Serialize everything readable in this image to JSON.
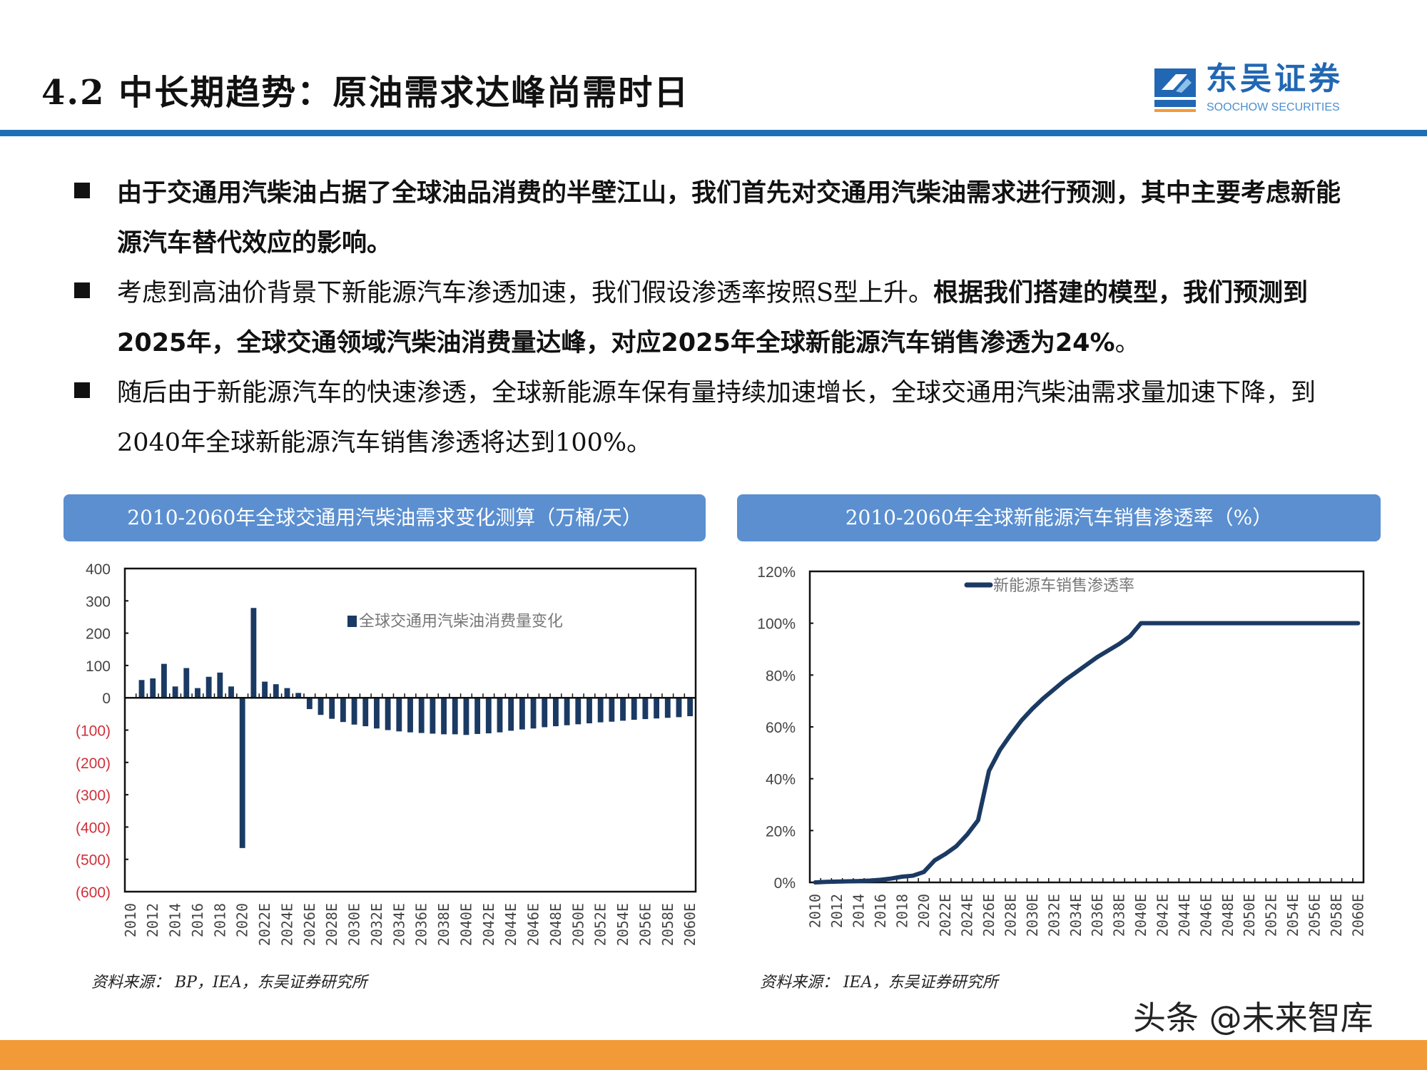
{
  "header": {
    "title": "4.2 中长期趋势：原油需求达峰尚需时日",
    "logo_cn": "东吴证券",
    "logo_en": "SOOCHOW SECURITIES",
    "logo_mark": "SCS"
  },
  "bullets": [
    {
      "segments": [
        {
          "text": "由于交通用汽柴油占据了全球油品消费的半壁江山，我们首先对交通用汽柴油需求进行预测，其中主要考虑新能源汽车替代效应的影响。",
          "bold": true
        }
      ]
    },
    {
      "segments": [
        {
          "text": "考虑到高油价背景下新能源汽车渗透加速，我们假设渗透率按照S型上升。",
          "bold": false
        },
        {
          "text": "根据我们搭建的模型，我们预测到2025年，全球交通领域汽柴油消费量达峰，对应2025年全球新能源汽车销售渗透为24%",
          "bold": true
        },
        {
          "text": "。",
          "bold": false
        }
      ]
    },
    {
      "segments": [
        {
          "text": "随后由于新能源汽车的快速渗透，全球新能源车保有量持续加速增长，全球交通用汽柴油需求量加速下降，到2040年全球新能源汽车销售渗透将达到100%。",
          "bold": false
        }
      ]
    }
  ],
  "colors": {
    "accent": "#1f6fb5",
    "header_box": "#5b8fd0",
    "series": "#1b3a63",
    "negative_tick": "#d0303a",
    "footer": "#f39a38"
  },
  "chart_data": [
    {
      "type": "bar",
      "title": "2010-2060年全球交通用汽柴油需求变化测算（万桶/天）",
      "legend": "全球交通用汽柴油消费量变化",
      "legend_position": "top-right",
      "ylim": [
        -600,
        400
      ],
      "yticks": [
        400,
        300,
        200,
        100,
        0,
        -100,
        -200,
        -300,
        -400,
        -500,
        -600
      ],
      "ytick_labels": [
        "400",
        "300",
        "200",
        "100",
        "0",
        "(100)",
        "(200)",
        "(300)",
        "(400)",
        "(500)",
        "(600)"
      ],
      "categories": [
        "2010",
        "2011",
        "2012",
        "2013",
        "2014",
        "2015",
        "2016",
        "2017",
        "2018",
        "2019",
        "2020",
        "2021E",
        "2022E",
        "2023E",
        "2024E",
        "2025E",
        "2026E",
        "2027E",
        "2028E",
        "2029E",
        "2030E",
        "2031E",
        "2032E",
        "2033E",
        "2034E",
        "2035E",
        "2036E",
        "2037E",
        "2038E",
        "2039E",
        "2040E",
        "2041E",
        "2042E",
        "2043E",
        "2044E",
        "2045E",
        "2046E",
        "2047E",
        "2048E",
        "2049E",
        "2050E",
        "2051E",
        "2052E",
        "2053E",
        "2054E",
        "2055E",
        "2056E",
        "2057E",
        "2058E",
        "2059E",
        "2060E"
      ],
      "xtick_labels": [
        "2010",
        "2012",
        "2014",
        "2016",
        "2018",
        "2020",
        "2022E",
        "2024E",
        "2026E",
        "2028E",
        "2030E",
        "2032E",
        "2034E",
        "2036E",
        "2038E",
        "2040E",
        "2042E",
        "2044E",
        "2046E",
        "2048E",
        "2050E",
        "2052E",
        "2054E",
        "2056E",
        "2058E",
        "2060E"
      ],
      "values": [
        0,
        55,
        60,
        105,
        35,
        92,
        30,
        65,
        78,
        35,
        -465,
        278,
        50,
        42,
        30,
        15,
        -35,
        -53,
        -65,
        -75,
        -83,
        -88,
        -95,
        -100,
        -104,
        -107,
        -109,
        -111,
        -113,
        -113,
        -115,
        -112,
        -110,
        -107,
        -102,
        -98,
        -95,
        -91,
        -88,
        -85,
        -82,
        -79,
        -76,
        -74,
        -71,
        -68,
        -66,
        -64,
        -62,
        -60,
        -57
      ],
      "source": "资料来源：  BP，IEA，东吴证券研究所"
    },
    {
      "type": "line",
      "title": "2010-2060年全球新能源汽车销售渗透率（%）",
      "legend": "新能源车销售渗透率",
      "legend_position": "top-center",
      "ylim": [
        0,
        120
      ],
      "yticks": [
        0,
        20,
        40,
        60,
        80,
        100,
        120
      ],
      "ytick_labels": [
        "0%",
        "20%",
        "40%",
        "60%",
        "80%",
        "100%",
        "120%"
      ],
      "xtick_labels": [
        "2010",
        "2012",
        "2014",
        "2016",
        "2018",
        "2020",
        "2022E",
        "2024E",
        "2026E",
        "2028E",
        "2030E",
        "2032E",
        "2034E",
        "2036E",
        "2038E",
        "2040E",
        "2042E",
        "2044E",
        "2046E",
        "2048E",
        "2050E",
        "2052E",
        "2054E",
        "2056E",
        "2058E",
        "2060E"
      ],
      "values": [
        0,
        0.2,
        0.3,
        0.4,
        0.5,
        0.7,
        1.0,
        1.5,
        2.2,
        2.6,
        4,
        8.5,
        11,
        14,
        18.5,
        24,
        43,
        51,
        57,
        62.5,
        67,
        71,
        74.5,
        78,
        81,
        84,
        87,
        89.5,
        92,
        95,
        100,
        100,
        100,
        100,
        100,
        100,
        100,
        100,
        100,
        100,
        100,
        100,
        100,
        100,
        100,
        100,
        100,
        100,
        100,
        100,
        100
      ],
      "source": "资料来源：  IEA，东吴证券研究所"
    }
  ],
  "watermark": "头条 @未来智库"
}
